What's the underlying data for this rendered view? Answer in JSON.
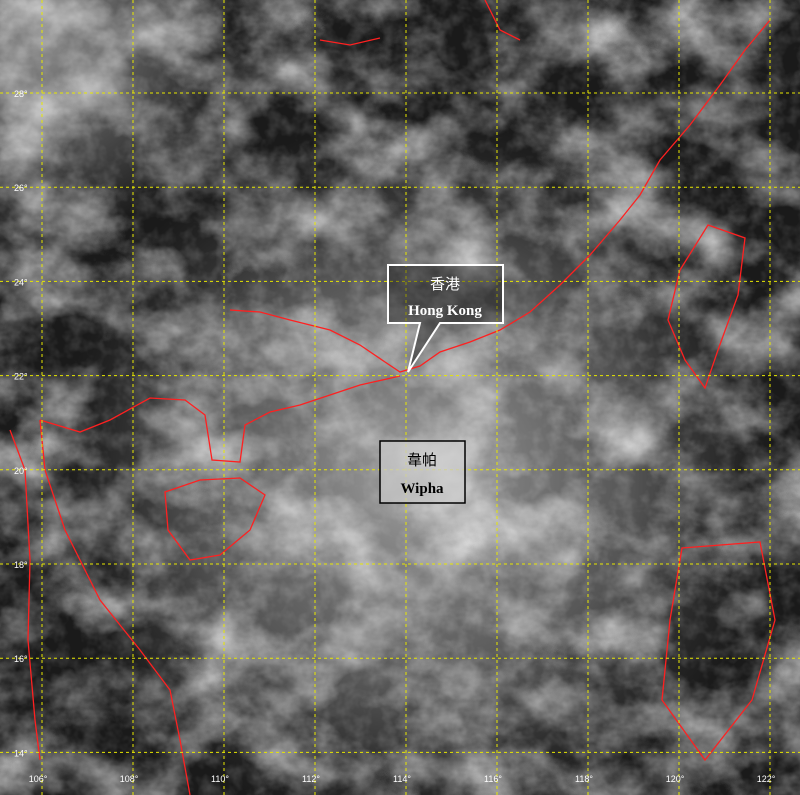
{
  "map": {
    "longitude_labels": [
      "106°",
      "108°",
      "110°",
      "112°",
      "114°",
      "116°",
      "118°",
      "120°",
      "122°"
    ],
    "latitude_labels": [
      "28°",
      "26°",
      "24°",
      "22°",
      "20°",
      "18°",
      "16°",
      "14°"
    ],
    "markers": [
      {
        "name_zh": "香港",
        "name_en": "Hong Kong"
      },
      {
        "name_zh": "韋帕",
        "name_en": "Wipha"
      }
    ]
  }
}
